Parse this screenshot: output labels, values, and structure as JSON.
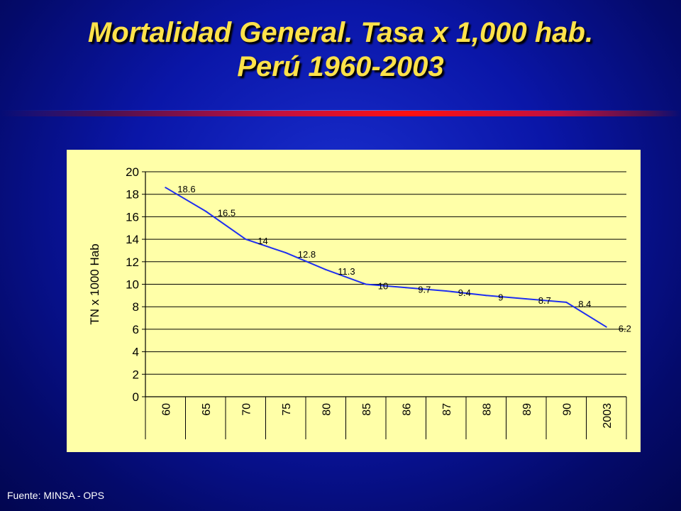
{
  "header": {
    "title_line1": "Mortalidad General. Tasa x 1,000 hab.",
    "title_line2": "Perú 1960-2003"
  },
  "footer": {
    "source": "Fuente: MINSA - OPS"
  },
  "colors": {
    "title": "#ffe24a",
    "chart_background": "#ffffa8",
    "line": "#1f2ff0",
    "accent_rule": "#ff1010"
  },
  "chart_data": {
    "type": "line",
    "title": "",
    "xlabel": "",
    "ylabel": "TN x 1000 Hab",
    "categories": [
      "60",
      "65",
      "70",
      "75",
      "80",
      "85",
      "86",
      "87",
      "88",
      "89",
      "90",
      "2003"
    ],
    "series": [
      {
        "values": [
          18.6,
          16.5,
          14,
          12.8,
          11.3,
          10,
          9.7,
          9.4,
          9,
          8.7,
          8.4,
          6.2
        ]
      }
    ],
    "data_labels": [
      "18.6",
      "16.5",
      "14",
      "12.8",
      "11.3",
      "10",
      "9.7",
      "9.4",
      "9",
      "8.7",
      "8.4",
      "6.2"
    ],
    "ylim": [
      0,
      20
    ],
    "yticks": [
      0,
      2,
      4,
      6,
      8,
      10,
      12,
      14,
      16,
      18,
      20
    ],
    "grid": true,
    "legend": false
  }
}
